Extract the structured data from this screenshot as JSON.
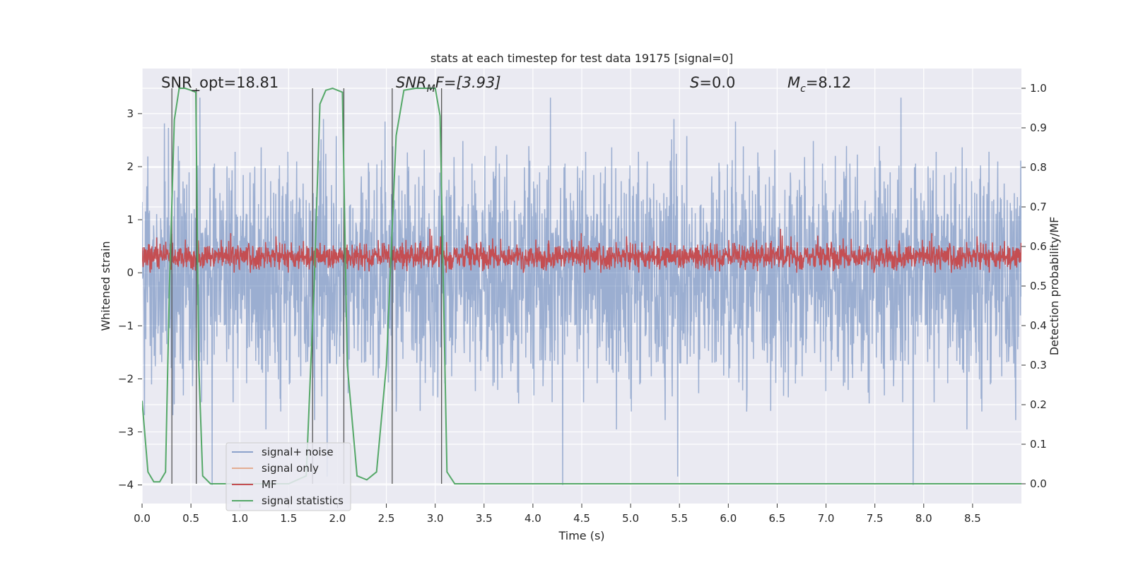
{
  "chart_data": {
    "type": "line",
    "title": "stats at each timestep for test data 19175 [signal=0]",
    "xlabel": "Time (s)",
    "ylabel": "Whitened strain",
    "ylabel_right": "Detection probability/MF",
    "xlim": [
      0.0,
      9.0
    ],
    "ylim": [
      -4.35,
      3.85
    ],
    "ylim_right": [
      -0.05,
      1.05
    ],
    "x_ticks": [
      "0.0",
      "0.5",
      "1.0",
      "1.5",
      "2.0",
      "2.5",
      "3.0",
      "3.5",
      "4.0",
      "4.5",
      "5.0",
      "5.5",
      "6.0",
      "6.5",
      "7.0",
      "7.5",
      "8.0",
      "8.5"
    ],
    "y_ticks": [
      "−4",
      "−3",
      "−2",
      "−1",
      "0",
      "1",
      "2",
      "3"
    ],
    "y_right_ticks": [
      "0.0",
      "0.1",
      "0.2",
      "0.3",
      "0.4",
      "0.5",
      "0.6",
      "0.7",
      "0.8",
      "0.9",
      "1.0"
    ],
    "grid": true,
    "legend_position": "lower-left",
    "annotations": {
      "snr_opt": "SNR_opt=18.81",
      "snr_mf_sym": "SNR",
      "snr_mf_sub": "M",
      "snr_mf_rest": "F=[3.93]",
      "s_sym": "S",
      "s_rest": "=0.0",
      "mc_sym": "M",
      "mc_sub": "c",
      "mc_rest": "=8.12"
    },
    "series": [
      {
        "name": "signal+ noise",
        "color": "#4c72b0",
        "axis": "left",
        "style": "noise",
        "amplitude_range": [
          -4.0,
          3.3
        ]
      },
      {
        "name": "signal only",
        "color": "#dd8452",
        "axis": "left",
        "values": []
      },
      {
        "name": "MF",
        "color": "#c44e52",
        "axis": "left",
        "style": "noise",
        "amplitude_range": [
          0.0,
          0.95
        ]
      },
      {
        "name": "signal statistics",
        "color": "#55a868",
        "axis": "right",
        "x": [
          0.0,
          0.06,
          0.12,
          0.18,
          0.24,
          0.28,
          0.33,
          0.38,
          0.44,
          0.5,
          0.55,
          0.58,
          0.62,
          0.7,
          1.0,
          1.5,
          1.68,
          1.76,
          1.82,
          1.88,
          1.95,
          2.05,
          2.1,
          2.2,
          2.3,
          2.4,
          2.5,
          2.6,
          2.68,
          2.8,
          3.0,
          3.05,
          3.12,
          3.2,
          3.5,
          9.0
        ],
        "y": [
          0.21,
          0.03,
          0.005,
          0.005,
          0.03,
          0.5,
          0.92,
          1.0,
          1.0,
          0.995,
          0.99,
          0.3,
          0.02,
          0.0,
          0.0,
          0.0,
          0.02,
          0.5,
          0.96,
          0.995,
          1.0,
          0.99,
          0.3,
          0.02,
          0.01,
          0.03,
          0.3,
          0.88,
          0.995,
          1.0,
          1.0,
          0.93,
          0.03,
          0.0,
          0.0,
          0.0
        ]
      }
    ],
    "vertical_markers": [
      0.305,
      0.555,
      1.745,
      2.065,
      2.56,
      3.065
    ]
  }
}
